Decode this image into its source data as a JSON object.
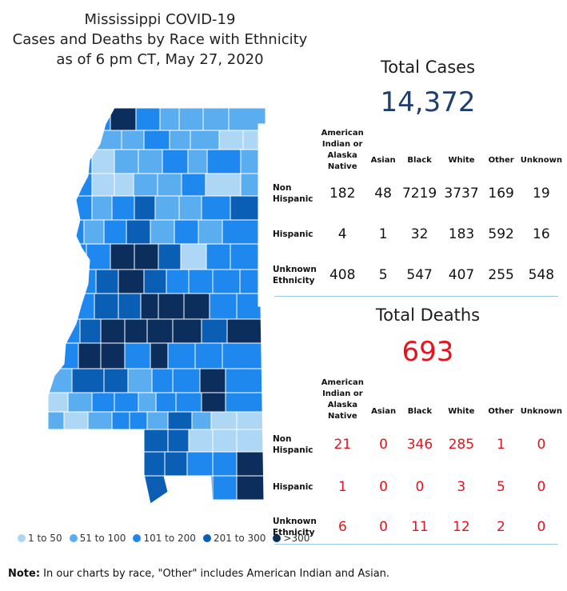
{
  "title": {
    "line1": "Mississippi COVID-19",
    "line2": "Cases and Deaths by Race with Ethnicity",
    "line3": "as of 6 pm CT, May 27, 2020"
  },
  "cases": {
    "heading": "Total Cases",
    "total": "14,372",
    "total_color": "#1f3f6e",
    "columns": [
      "American Indian or Alaska Native",
      "Asian",
      "Black",
      "White",
      "Other",
      "Unknown"
    ],
    "rows": [
      {
        "label": "Non Hispanic",
        "values": [
          "182",
          "48",
          "7219",
          "3737",
          "169",
          "19"
        ]
      },
      {
        "label": "Hispanic",
        "values": [
          "4",
          "1",
          "32",
          "183",
          "592",
          "16"
        ]
      },
      {
        "label": "Unknown Ethnicity",
        "values": [
          "408",
          "5",
          "547",
          "407",
          "255",
          "548"
        ]
      }
    ]
  },
  "deaths": {
    "heading": "Total Deaths",
    "total": "693",
    "total_color": "#e8121c",
    "columns": [
      "American Indian or Alaska Native",
      "Asian",
      "Black",
      "White",
      "Other",
      "Unknown"
    ],
    "rows": [
      {
        "label": "Non Hispanic",
        "values": [
          "21",
          "0",
          "346",
          "285",
          "1",
          "0"
        ]
      },
      {
        "label": "Hispanic",
        "values": [
          "1",
          "0",
          "0",
          "3",
          "5",
          "0"
        ]
      },
      {
        "label": "Unknown Ethnicity",
        "values": [
          "6",
          "0",
          "11",
          "12",
          "2",
          "0"
        ]
      }
    ]
  },
  "legend": [
    {
      "label": "1 to 50",
      "color": "#aed6f5"
    },
    {
      "label": "51 to 100",
      "color": "#5aaef0"
    },
    {
      "label": "101 to 200",
      "color": "#1e88ee"
    },
    {
      "label": "201 to 300",
      "color": "#0a5fb5"
    },
    {
      "label": ">300",
      "color": "#0b2e5c"
    }
  ],
  "map": {
    "no_data_color": "#c8c8c8",
    "border_color": "#ffffff"
  },
  "note": {
    "bold": "Note:",
    "text": " In our charts by race, \"Other\" includes American Indian and Asian."
  },
  "chart_data": [
    {
      "type": "table",
      "title": "Total Cases",
      "total": 14372,
      "columns": [
        "American Indian or Alaska Native",
        "Asian",
        "Black",
        "White",
        "Other",
        "Unknown"
      ],
      "rows": [
        "Non Hispanic",
        "Hispanic",
        "Unknown Ethnicity"
      ],
      "values": [
        [
          182,
          48,
          7219,
          3737,
          169,
          19
        ],
        [
          4,
          1,
          32,
          183,
          592,
          16
        ],
        [
          408,
          5,
          547,
          407,
          255,
          548
        ]
      ]
    },
    {
      "type": "table",
      "title": "Total Deaths",
      "total": 693,
      "columns": [
        "American Indian or Alaska Native",
        "Asian",
        "Black",
        "White",
        "Other",
        "Unknown"
      ],
      "rows": [
        "Non Hispanic",
        "Hispanic",
        "Unknown Ethnicity"
      ],
      "values": [
        [
          21,
          0,
          346,
          285,
          1,
          0
        ],
        [
          1,
          0,
          0,
          3,
          5,
          0
        ],
        [
          6,
          0,
          11,
          12,
          2,
          0
        ]
      ]
    }
  ]
}
